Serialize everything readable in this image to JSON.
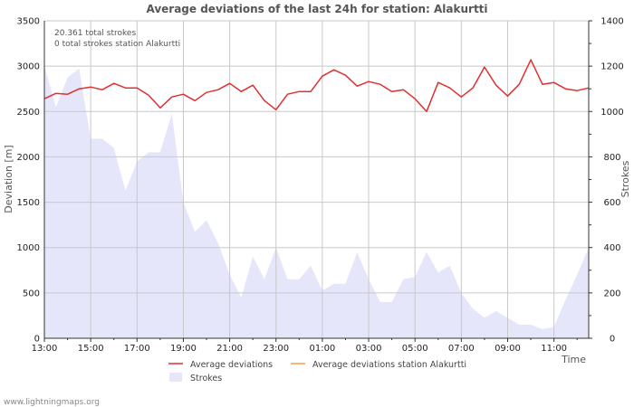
{
  "chart_data": {
    "type": "line",
    "title": "Average deviations of the last 24h for station: Alakurtti",
    "ylabel_left": "Deviation  [m]",
    "ylabel_right": "Strokes",
    "xlabel": "Time",
    "info_lines": [
      "20.361 total strokes",
      "0 total strokes station Alakurtti"
    ],
    "credit": "www.lightningmaps.org",
    "ylim_left": [
      0,
      3500
    ],
    "ylim_right": [
      0,
      1400
    ],
    "left_ticks": [
      "0",
      "500",
      "1000",
      "1500",
      "2000",
      "2500",
      "3000",
      "3500"
    ],
    "right_ticks": [
      "0",
      "200",
      "400",
      "600",
      "800",
      "1000",
      "1200",
      "1400"
    ],
    "x_ticks": [
      "13:00",
      "15:00",
      "17:00",
      "19:00",
      "21:00",
      "23:00",
      "01:00",
      "03:00",
      "05:00",
      "07:00",
      "09:00",
      "11:00"
    ],
    "x_range_hours": [
      0,
      23.5
    ],
    "legend": [
      {
        "label": "Average deviations",
        "color": "#e03030",
        "kind": "line"
      },
      {
        "label": "Average deviations station Alakurtti",
        "color": "#f0a040",
        "kind": "line"
      },
      {
        "label": "Strokes",
        "color": "#e6e6fa",
        "kind": "area"
      }
    ],
    "series": [
      {
        "name": "Strokes",
        "axis": "right",
        "color": "#e6e6fa",
        "x": [
          0,
          0.5,
          1,
          1.5,
          2,
          2.5,
          3,
          3.5,
          4,
          4.5,
          5,
          5.5,
          6,
          6.5,
          7,
          7.5,
          8,
          8.5,
          9,
          9.5,
          10,
          10.5,
          11,
          11.5,
          12,
          12.5,
          13,
          13.5,
          14,
          14.5,
          15,
          15.5,
          16,
          16.5,
          17,
          17.5,
          18,
          18.5,
          19,
          19.5,
          20,
          20.5,
          21,
          21.5,
          22,
          22.5,
          23,
          23.5
        ],
        "values": [
          1200,
          1020,
          1150,
          1190,
          880,
          880,
          840,
          650,
          780,
          820,
          820,
          990,
          600,
          470,
          520,
          420,
          280,
          180,
          360,
          260,
          400,
          260,
          260,
          320,
          210,
          240,
          240,
          380,
          260,
          160,
          160,
          260,
          270,
          380,
          290,
          320,
          200,
          130,
          90,
          120,
          90,
          60,
          60,
          40,
          50,
          170,
          280,
          400
        ]
      },
      {
        "name": "Average deviations",
        "axis": "left",
        "color": "#e03030",
        "x": [
          0,
          0.5,
          1,
          1.5,
          2,
          2.5,
          3,
          3.5,
          4,
          4.5,
          5,
          5.5,
          6,
          6.5,
          7,
          7.5,
          8,
          8.5,
          9,
          9.5,
          10,
          10.5,
          11,
          11.5,
          12,
          12.5,
          13,
          13.5,
          14,
          14.5,
          15,
          15.5,
          16,
          16.5,
          17,
          17.5,
          18,
          18.5,
          19,
          19.5,
          20,
          20.5,
          21,
          21.5,
          22,
          22.5,
          23,
          23.5
        ],
        "values": [
          2640,
          2700,
          2690,
          2750,
          2770,
          2740,
          2810,
          2760,
          2760,
          2680,
          2540,
          2660,
          2690,
          2620,
          2710,
          2740,
          2810,
          2720,
          2790,
          2620,
          2520,
          2690,
          2720,
          2720,
          2890,
          2960,
          2900,
          2780,
          2830,
          2800,
          2720,
          2740,
          2640,
          2500,
          2820,
          2760,
          2660,
          2760,
          2990,
          2790,
          2670,
          2800,
          3070,
          2800,
          2820,
          2750,
          2730,
          2760
        ]
      },
      {
        "name": "Average deviations station Alakurtti",
        "axis": "left",
        "color": "#f0a040",
        "x": [],
        "values": []
      }
    ]
  }
}
